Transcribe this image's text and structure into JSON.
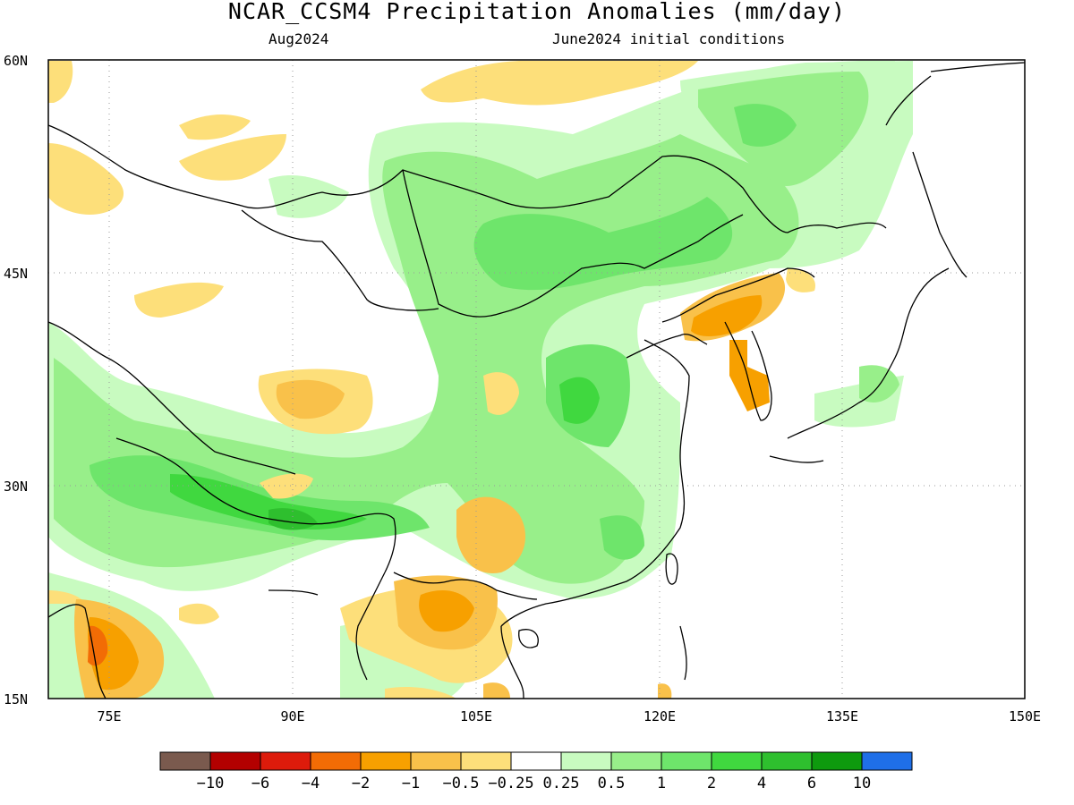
{
  "title": "NCAR_CCSM4 Precipitation Anomalies (mm/day)",
  "valid_month": "Aug2024",
  "initial_conditions": "June2024 initial conditions",
  "map": {
    "lon_range": [
      70,
      150
    ],
    "lat_range": [
      15,
      60
    ],
    "lat_ticks": [
      "60N",
      "45N",
      "30N",
      "15N"
    ],
    "lon_ticks": [
      "75E",
      "90E",
      "105E",
      "120E",
      "135E",
      "150E"
    ],
    "grid": "dotted"
  },
  "colorbar": {
    "colors": [
      "#7a5a4e",
      "#b30000",
      "#dd1b0b",
      "#f26c05",
      "#f7a000",
      "#f9c14a",
      "#fddf7a",
      "#ffffff",
      "#c8fbc0",
      "#98ef8a",
      "#6ee56b",
      "#40d83f",
      "#2ebf2e",
      "#0e9a0e",
      "#1f6fe8"
    ],
    "labels": [
      "-10",
      "-6",
      "-4",
      "-2",
      "-1",
      "-0.5",
      "-0.25",
      "0.25",
      "0.5",
      "1",
      "2",
      "4",
      "6",
      "10"
    ]
  }
}
